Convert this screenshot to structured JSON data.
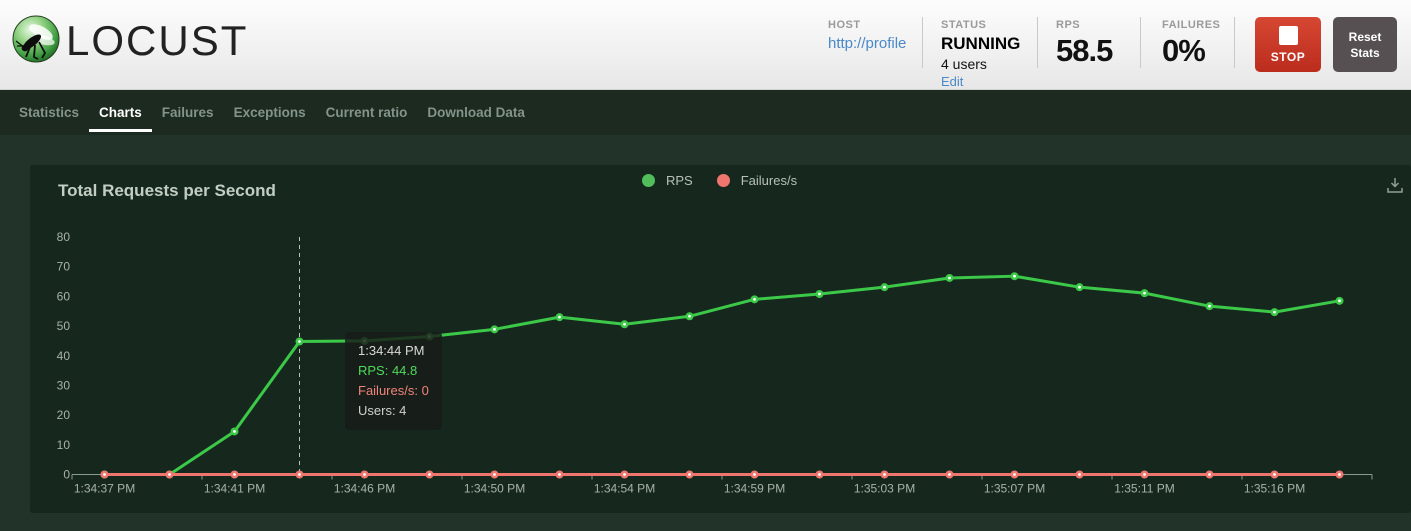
{
  "header": {
    "logo_text": "LOCUST",
    "host": {
      "label": "HOST",
      "value": "http://profile"
    },
    "status": {
      "label": "STATUS",
      "value": "RUNNING",
      "users": "4 users",
      "edit_label": "Edit"
    },
    "rps": {
      "label": "RPS",
      "value": "58.5"
    },
    "failures": {
      "label": "FAILURES",
      "value": "0%"
    },
    "stop_button_label": "STOP",
    "reset_button_label": "Reset Stats"
  },
  "nav": {
    "tabs": [
      {
        "label": "Statistics",
        "active": false
      },
      {
        "label": "Charts",
        "active": true
      },
      {
        "label": "Failures",
        "active": false
      },
      {
        "label": "Exceptions",
        "active": false
      },
      {
        "label": "Current ratio",
        "active": false
      },
      {
        "label": "Download Data",
        "active": false
      }
    ]
  },
  "chart": {
    "title": "Total Requests per Second",
    "legend": [
      {
        "label": "RPS",
        "color": "#52bd5b"
      },
      {
        "label": "Failures/s",
        "color": "#ee766e"
      }
    ],
    "tooltip": {
      "time": "1:34:44 PM",
      "rps": "RPS: 44.8",
      "failures": "Failures/s: 0",
      "users": "Users: 4"
    }
  },
  "chart_data": {
    "type": "line",
    "title": "Total Requests per Second",
    "x": [
      "1:34:37 PM",
      "1:34:39 PM",
      "1:34:41 PM",
      "1:34:44 PM",
      "1:34:46 PM",
      "1:34:48 PM",
      "1:34:50 PM",
      "1:34:52 PM",
      "1:34:54 PM",
      "1:34:57 PM",
      "1:34:59 PM",
      "1:35:01 PM",
      "1:35:03 PM",
      "1:35:05 PM",
      "1:35:07 PM",
      "1:35:09 PM",
      "1:35:11 PM",
      "1:35:14 PM",
      "1:35:16 PM",
      "1:35:18 PM"
    ],
    "x_tick_labels": [
      "1:34:37 PM",
      "1:34:41 PM",
      "1:34:46 PM",
      "1:34:50 PM",
      "1:34:54 PM",
      "1:34:59 PM",
      "1:35:03 PM",
      "1:35:07 PM",
      "1:35:11 PM",
      "1:35:16 PM"
    ],
    "series": [
      {
        "name": "RPS",
        "color": "#3cc848",
        "values": [
          0,
          0,
          14.5,
          44.8,
          45.0,
          46.5,
          48.9,
          53.0,
          50.6,
          53.3,
          59.0,
          60.8,
          63.1,
          66.2,
          66.8,
          63.1,
          61.1,
          56.7,
          54.7,
          58.5
        ]
      },
      {
        "name": "Failures/s",
        "color": "#ee766e",
        "values": [
          0,
          0,
          0,
          0,
          0,
          0,
          0,
          0,
          0,
          0,
          0,
          0,
          0,
          0,
          0,
          0,
          0,
          0,
          0,
          0
        ]
      }
    ],
    "ylim": [
      0,
      80
    ],
    "y_ticks": [
      0,
      10,
      20,
      30,
      40,
      50,
      60,
      70,
      80
    ],
    "grid": false,
    "legend_position": "top-center",
    "tooltip_index": 3
  },
  "colors": {
    "accent_green": "#3cc848",
    "accent_red": "#ee766e",
    "stop_red": "#c8392a",
    "navbar_bg": "#1c2a20",
    "panel_bg": "#16281d",
    "page_bg": "#223329",
    "axis_text": "#a7b2a9"
  }
}
